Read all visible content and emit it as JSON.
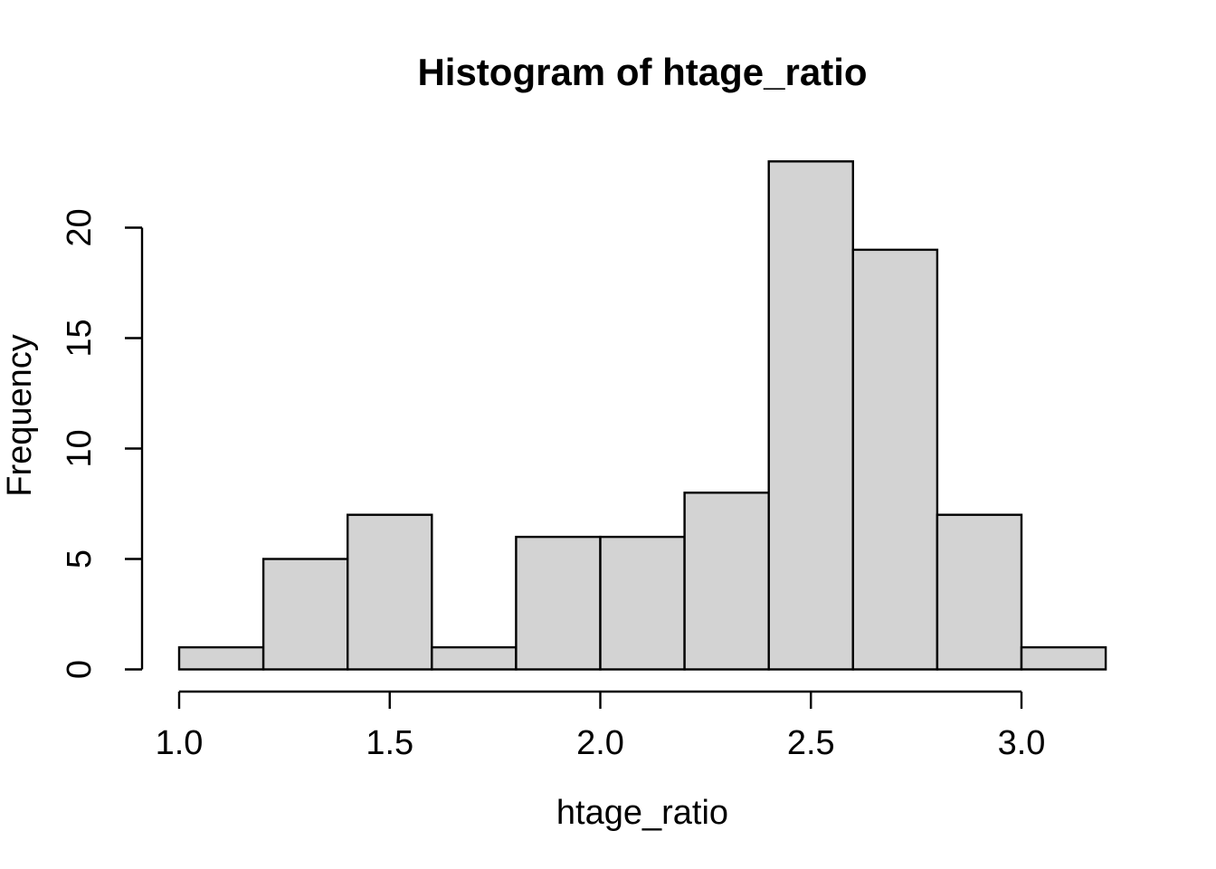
{
  "chart_data": {
    "type": "bar",
    "subtype": "histogram",
    "title": "Histogram of htage_ratio",
    "xlabel": "htage_ratio",
    "ylabel": "Frequency",
    "bin_edges": [
      1.0,
      1.2,
      1.4,
      1.6,
      1.8,
      2.0,
      2.2,
      2.4,
      2.6,
      2.8,
      3.0,
      3.2
    ],
    "counts": [
      1,
      5,
      7,
      1,
      6,
      6,
      8,
      23,
      19,
      7,
      1
    ],
    "x_ticks": [
      {
        "value": 1.0,
        "label": "1.0"
      },
      {
        "value": 1.5,
        "label": "1.5"
      },
      {
        "value": 2.0,
        "label": "2.0"
      },
      {
        "value": 2.5,
        "label": "2.5"
      },
      {
        "value": 3.0,
        "label": "3.0"
      }
    ],
    "y_ticks": [
      {
        "value": 0,
        "label": "0"
      },
      {
        "value": 5,
        "label": "5"
      },
      {
        "value": 10,
        "label": "10"
      },
      {
        "value": 15,
        "label": "15"
      },
      {
        "value": 20,
        "label": "20"
      }
    ],
    "xlim": [
      1.0,
      3.2
    ],
    "ylim": [
      0,
      23
    ],
    "grid": false,
    "legend": false,
    "colors": {
      "bar_fill": "#d3d3d3",
      "bar_stroke": "#000000",
      "axis": "#000000",
      "background": "#ffffff"
    }
  }
}
